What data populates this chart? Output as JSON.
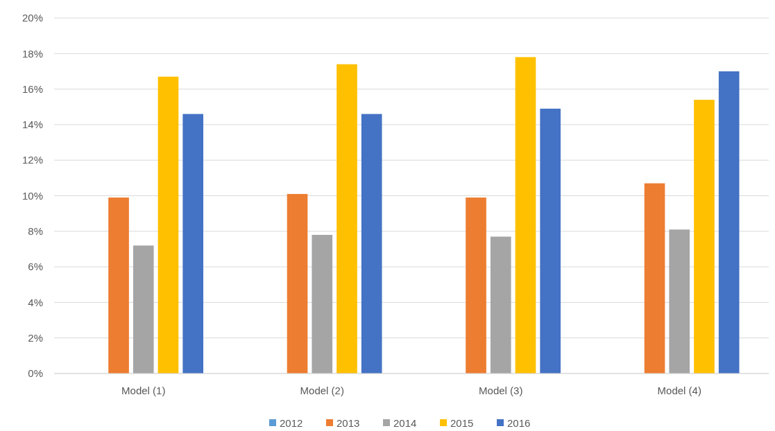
{
  "chart_data": {
    "type": "bar",
    "categories": [
      "Model (1)",
      "Model (2)",
      "Model (3)",
      "Model (4)"
    ],
    "series": [
      {
        "name": "2012",
        "color": "#5b9bd5",
        "values": [
          null,
          null,
          null,
          null
        ]
      },
      {
        "name": "2013",
        "color": "#ed7d31",
        "values": [
          9.9,
          10.1,
          9.9,
          10.7
        ]
      },
      {
        "name": "2014",
        "color": "#a5a5a5",
        "values": [
          7.2,
          7.8,
          7.7,
          8.1
        ]
      },
      {
        "name": "2015",
        "color": "#ffc000",
        "values": [
          16.7,
          17.4,
          17.8,
          15.4
        ]
      },
      {
        "name": "2016",
        "color": "#4472c4",
        "values": [
          14.6,
          14.6,
          14.9,
          17.0
        ]
      }
    ],
    "ylim": [
      0,
      20
    ],
    "yticks": [
      {
        "value": 0,
        "label": "0%"
      },
      {
        "value": 2,
        "label": "2%"
      },
      {
        "value": 4,
        "label": "4%"
      },
      {
        "value": 6,
        "label": "6%"
      },
      {
        "value": 8,
        "label": "8%"
      },
      {
        "value": 10,
        "label": "10%"
      },
      {
        "value": 12,
        "label": "12%"
      },
      {
        "value": 14,
        "label": "14%"
      },
      {
        "value": 16,
        "label": "16%"
      },
      {
        "value": 18,
        "label": "18%"
      },
      {
        "value": 20,
        "label": "20%"
      }
    ],
    "grid": "y",
    "legend": "bottom"
  }
}
